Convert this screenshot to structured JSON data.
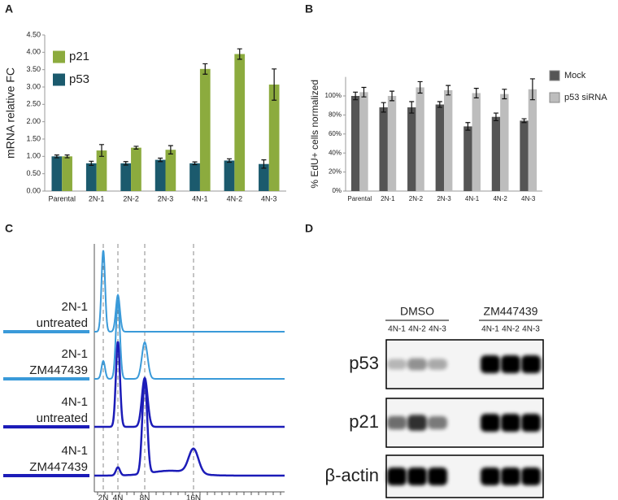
{
  "panel_labels": [
    "A",
    "B",
    "C",
    "D"
  ],
  "chart_data": [
    {
      "type": "bar",
      "ylabel": "mRNA relative FC",
      "categories": [
        "Parental",
        "2N-1",
        "2N-2",
        "2N-3",
        "4N-1",
        "4N-2",
        "4N-3"
      ],
      "series": [
        {
          "name": "p53",
          "color": "#1b5a6d",
          "values": [
            1.0,
            0.8,
            0.8,
            0.9,
            0.8,
            0.88,
            0.78
          ],
          "errors": [
            0.04,
            0.06,
            0.05,
            0.05,
            0.04,
            0.05,
            0.12
          ]
        },
        {
          "name": "p21",
          "color": "#8cab3e",
          "values": [
            1.0,
            1.17,
            1.25,
            1.19,
            3.52,
            3.95,
            3.07
          ],
          "errors": [
            0.04,
            0.17,
            0.04,
            0.12,
            0.15,
            0.15,
            0.45
          ]
        }
      ],
      "ylim": [
        0,
        4.5
      ],
      "yticks": [
        {
          "value": 0,
          "label": "0.00"
        },
        {
          "value": 0.5,
          "label": "0.50"
        },
        {
          "value": 1,
          "label": "1.00"
        },
        {
          "value": 1.5,
          "label": "1.50"
        },
        {
          "value": 2,
          "label": "2.00"
        },
        {
          "value": 2.5,
          "label": "2.50"
        },
        {
          "value": 3,
          "label": "3.00"
        },
        {
          "value": 3.5,
          "label": "3.50"
        },
        {
          "value": 4,
          "label": "4.00"
        },
        {
          "value": 4.5,
          "label": "4.50"
        }
      ],
      "legend": "upper left"
    },
    {
      "type": "bar",
      "ylabel": "% EdU+ cells normalized",
      "categories": [
        "Parental",
        "2N-1",
        "2N-2",
        "2N-3",
        "4N-1",
        "4N-2",
        "4N-3"
      ],
      "series": [
        {
          "name": "Mock",
          "color": "#555555",
          "values": [
            100,
            88,
            88,
            91,
            68,
            78,
            74
          ],
          "errors": [
            4,
            5,
            6,
            3,
            4,
            4,
            2
          ]
        },
        {
          "name": "p53 siRNA",
          "color": "#bdbdbd",
          "values": [
            104,
            100,
            109,
            106,
            103,
            102,
            107
          ],
          "errors": [
            5,
            5,
            6,
            5,
            5,
            5,
            11
          ]
        }
      ],
      "ylim": [
        0,
        120
      ],
      "yticks": [
        {
          "value": 0,
          "label": "0%"
        },
        {
          "value": 20,
          "label": "20%"
        },
        {
          "value": 40,
          "label": "40%"
        },
        {
          "value": 60,
          "label": "60%"
        },
        {
          "value": 80,
          "label": "80%"
        },
        {
          "value": 100,
          "label": "100%"
        }
      ],
      "legend": "right"
    }
  ],
  "flow": {
    "samples": [
      {
        "lines": [
          "2N-1",
          "untreated"
        ]
      },
      {
        "lines": [
          "2N-1",
          "ZM447439"
        ]
      },
      {
        "lines": [
          "4N-1",
          "untreated"
        ]
      },
      {
        "lines": [
          "4N-1",
          "ZM447439"
        ]
      }
    ],
    "x_ticks": [
      "2N",
      "4N",
      "8N",
      "16N"
    ]
  },
  "blot": {
    "groups": [
      {
        "label": "DMSO",
        "lanes": [
          "4N-1",
          "4N-2",
          "4N-3"
        ]
      },
      {
        "label": "ZM447439",
        "lanes": [
          "4N-1",
          "4N-2",
          "4N-3"
        ]
      }
    ],
    "rows": [
      "p53",
      "p21",
      "β-actin"
    ]
  }
}
